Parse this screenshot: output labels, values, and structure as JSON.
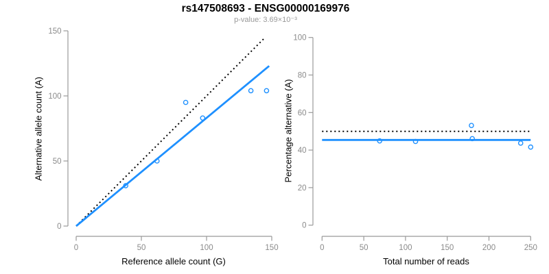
{
  "header": {
    "title": "rs147508693 - ENSG00000169976",
    "subtitle": "p-value: 3.69×10⁻³"
  },
  "colors": {
    "accent_blue": "#1E90FF",
    "dotted_black": "#000000",
    "axis_line_gray": "#999999",
    "tick_label_gray": "#8a8a8a",
    "subtitle_gray": "#999999"
  },
  "chart_data": [
    {
      "id": "left",
      "type": "scatter",
      "title": "",
      "xlabel": "Reference allele count (G)",
      "ylabel": "Alternative allele count (A)",
      "xlim": [
        0,
        150
      ],
      "ylim": [
        0,
        150
      ],
      "xticks": [
        0,
        50,
        100,
        150
      ],
      "yticks": [
        0,
        50,
        100,
        150
      ],
      "grid": false,
      "legend": null,
      "points": [
        [
          38,
          31
        ],
        [
          62,
          50
        ],
        [
          84,
          95
        ],
        [
          97,
          83
        ],
        [
          134,
          104
        ],
        [
          146,
          104
        ]
      ],
      "lines": [
        {
          "name": "identity-line",
          "style": "dotted",
          "color": "#000000",
          "x": [
            0,
            145
          ],
          "y": [
            0,
            145
          ]
        },
        {
          "name": "fit-line",
          "style": "solid",
          "color": "#1E90FF",
          "x": [
            0,
            148
          ],
          "y": [
            0,
            123
          ]
        }
      ]
    },
    {
      "id": "right",
      "type": "scatter",
      "title": "",
      "xlabel": "Total number of reads",
      "ylabel": "Percentage alternative (A)",
      "xlim": [
        0,
        250
      ],
      "ylim": [
        0,
        100
      ],
      "xticks": [
        0,
        50,
        100,
        150,
        200,
        250
      ],
      "yticks": [
        0,
        20,
        40,
        60,
        80,
        100
      ],
      "grid": false,
      "legend": null,
      "points": [
        [
          69,
          44.9
        ],
        [
          112,
          44.6
        ],
        [
          179,
          53.1
        ],
        [
          180,
          46.1
        ],
        [
          238,
          43.7
        ],
        [
          250,
          41.6
        ]
      ],
      "lines": [
        {
          "name": "expected-50-percent-line",
          "style": "dotted",
          "color": "#000000",
          "x": [
            0,
            250
          ],
          "y": [
            50,
            50
          ]
        },
        {
          "name": "fit-line",
          "style": "solid",
          "color": "#1E90FF",
          "x": [
            0,
            250
          ],
          "y": [
            45.4,
            45.4
          ]
        }
      ]
    }
  ]
}
